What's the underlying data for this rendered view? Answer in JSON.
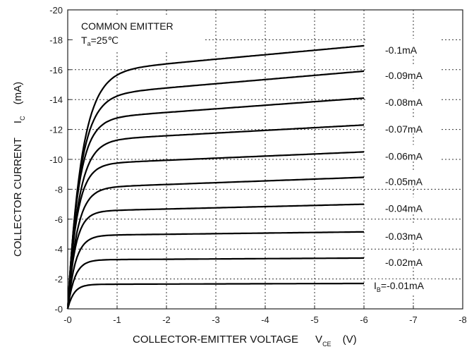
{
  "chart_data": {
    "type": "line",
    "title": "COMMON EMITTER",
    "condition": {
      "symbol": "T",
      "subscript": "a",
      "text": "=25℃"
    },
    "xlabel": {
      "text": "COLLECTOR-EMITTER VOLTAGE",
      "symbol": "V",
      "subscript": "CE",
      "unit": "(V)"
    },
    "ylabel": {
      "text": "COLLECTOR CURRENT",
      "symbol": "I",
      "subscript": "C",
      "unit": "(mA)"
    },
    "x_ticks": [
      "-0",
      "-1",
      "-2",
      "-3",
      "-4",
      "-5",
      "-6",
      "-7",
      "-8"
    ],
    "y_ticks": [
      "-0",
      "-2",
      "-4",
      "-6",
      "-8",
      "-10",
      "-12",
      "-14",
      "-16",
      "-18",
      "-20"
    ],
    "xlim": [
      0,
      -8
    ],
    "ylim": [
      0,
      -20
    ],
    "grid": true,
    "grid_style": "dotted",
    "series": [
      {
        "name": "-0.1mA",
        "knee_v": 0.9,
        "x": [
          0,
          -1,
          -6
        ],
        "y": [
          0,
          -16.1,
          -17.6
        ]
      },
      {
        "name": "-0.09mA",
        "knee_v": 0.8,
        "x": [
          0,
          -1,
          -6
        ],
        "y": [
          0,
          -14.5,
          -15.9
        ]
      },
      {
        "name": "-0.08mA",
        "knee_v": 0.7,
        "x": [
          0,
          -1,
          -6
        ],
        "y": [
          0,
          -12.9,
          -14.1
        ]
      },
      {
        "name": "-0.07mA",
        "knee_v": 0.7,
        "x": [
          0,
          -1,
          -6
        ],
        "y": [
          0,
          -11.4,
          -12.3
        ]
      },
      {
        "name": "-0.06mA",
        "knee_v": 0.6,
        "x": [
          0,
          -1,
          -6
        ],
        "y": [
          0,
          -9.8,
          -10.5
        ]
      },
      {
        "name": "-0.05mA",
        "knee_v": 0.6,
        "x": [
          0,
          -1,
          -6
        ],
        "y": [
          0,
          -8.2,
          -8.8
        ]
      },
      {
        "name": "-0.04mA",
        "knee_v": 0.5,
        "x": [
          0,
          -1,
          -6
        ],
        "y": [
          0,
          -6.6,
          -7.0
        ]
      },
      {
        "name": "-0.03mA",
        "knee_v": 0.5,
        "x": [
          0,
          -1,
          -6
        ],
        "y": [
          0,
          -4.95,
          -5.15
        ]
      },
      {
        "name": "-0.02mA",
        "knee_v": 0.45,
        "x": [
          0,
          -1,
          -6
        ],
        "y": [
          0,
          -3.3,
          -3.4
        ]
      },
      {
        "name": "-0.01mA",
        "knee_v": 0.4,
        "x": [
          0,
          -1,
          -6
        ],
        "y": [
          0,
          -1.65,
          -1.7
        ],
        "label_prefix": "I",
        "label_sub": "B",
        "label_rest": "=-0.01mA"
      }
    ]
  }
}
